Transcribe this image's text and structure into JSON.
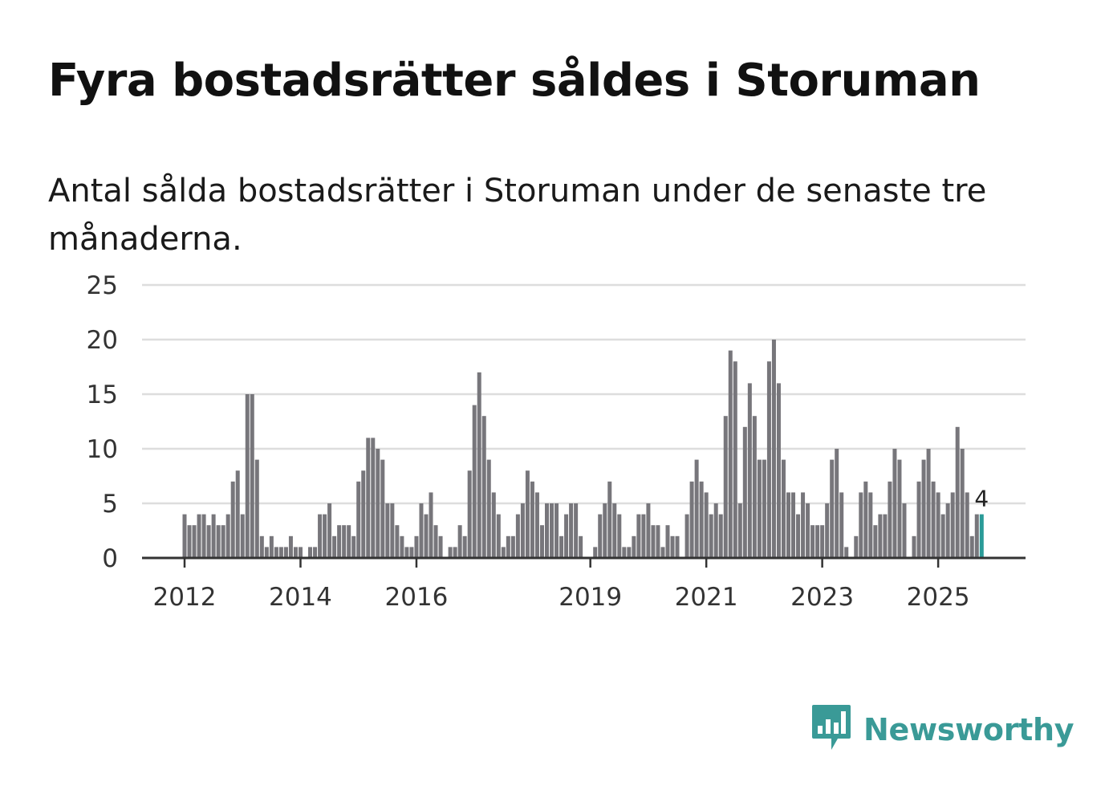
{
  "title": "Fyra bostadsrätter såldes i Storuman",
  "subtitle": "Antal sålda bostadsrätter i Storuman under de senaste tre månaderna.",
  "brand": {
    "name": "Newsworthy",
    "icon": "newsworthy-logo-icon",
    "color": "#3a9a97"
  },
  "colors": {
    "bar": "#77767b",
    "highlight": "#2a9b98",
    "grid": "#dddddd",
    "axis": "#333333"
  },
  "chart_data": {
    "type": "bar",
    "title": "Fyra bostadsrätter såldes i Storuman",
    "xlabel": "",
    "ylabel": "",
    "ylim": [
      0,
      25
    ],
    "yticks": [
      "0",
      "5",
      "10",
      "15",
      "20",
      "25"
    ],
    "ytick_values": [
      0,
      5,
      10,
      15,
      20,
      25
    ],
    "xticks": [
      {
        "label": "2012",
        "index": 0
      },
      {
        "label": "2014",
        "index": 24
      },
      {
        "label": "2016",
        "index": 48
      },
      {
        "label": "2019",
        "index": 84
      },
      {
        "label": "2021",
        "index": 108
      },
      {
        "label": "2023",
        "index": 132
      },
      {
        "label": "2025",
        "index": 156
      }
    ],
    "start": "2012-01",
    "frequency": "monthly",
    "values": [
      4,
      3,
      3,
      4,
      4,
      3,
      4,
      3,
      3,
      4,
      7,
      8,
      4,
      15,
      15,
      9,
      2,
      1,
      2,
      1,
      1,
      1,
      2,
      1,
      1,
      0,
      1,
      1,
      4,
      4,
      5,
      2,
      3,
      3,
      3,
      2,
      7,
      8,
      11,
      11,
      10,
      9,
      5,
      5,
      3,
      2,
      1,
      1,
      2,
      5,
      4,
      6,
      3,
      2,
      0,
      1,
      1,
      3,
      2,
      8,
      14,
      17,
      13,
      9,
      6,
      4,
      1,
      2,
      2,
      4,
      5,
      8,
      7,
      6,
      3,
      5,
      5,
      5,
      2,
      4,
      5,
      5,
      2,
      0,
      0,
      1,
      4,
      5,
      7,
      5,
      4,
      1,
      1,
      2,
      4,
      4,
      5,
      3,
      3,
      1,
      3,
      2,
      2,
      0,
      4,
      7,
      9,
      7,
      6,
      4,
      5,
      4,
      13,
      19,
      18,
      5,
      12,
      16,
      13,
      9,
      9,
      18,
      20,
      16,
      9,
      6,
      6,
      4,
      6,
      5,
      3,
      3,
      3,
      5,
      9,
      10,
      6,
      1,
      0,
      2,
      6,
      7,
      6,
      3,
      4,
      4,
      7,
      10,
      9,
      5,
      0,
      2,
      7,
      9,
      10,
      7,
      6,
      4,
      5,
      6,
      12,
      10,
      6,
      2,
      4,
      4
    ],
    "highlight_index": 165,
    "highlight_label": "4",
    "legend": "none"
  }
}
